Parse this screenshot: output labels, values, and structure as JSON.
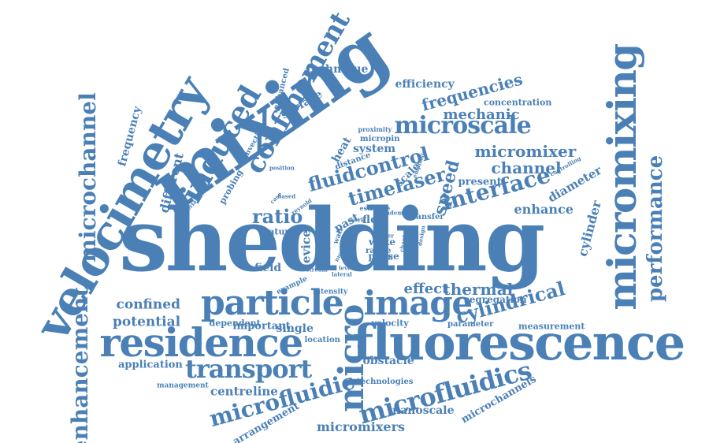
{
  "color": "#4a80b6",
  "words": [
    "shedding",
    "fluorescence",
    "mixing",
    "velocimetry",
    "micromixing",
    "residence",
    "particle",
    "image",
    "micro",
    "microscale",
    "confinement",
    "induced",
    "microchannel",
    "transport",
    "microfluidics",
    "microfluidic",
    "enhancement",
    "performance",
    "interface",
    "cylindrical",
    "fluidcontrol",
    "timelaser",
    "frequencies",
    "speed",
    "micromixer",
    "channel",
    "ratio",
    "thermal",
    "effect",
    "enhance",
    "mechanic",
    "efficiency",
    "confined",
    "potential",
    "application",
    "centreline",
    "micromixers",
    "microchannels",
    "nanoscale",
    "arrangement",
    "obstacle",
    "technique",
    "surface",
    "frequency",
    "system",
    "cylinder",
    "diameter",
    "present",
    "different",
    "enhanced",
    "convection",
    "probing",
    "heat",
    "scale",
    "past",
    "flow",
    "device",
    "wake",
    "range",
    "phase",
    "single",
    "important",
    "dependent",
    "location",
    "velocity",
    "measurement",
    "segregation",
    "parameter",
    "technologies",
    "management",
    "intensity",
    "field",
    "feature",
    "concentration",
    "micropin",
    "proximity",
    "distance",
    "position",
    "material",
    "controlling",
    "emphasis",
    "reynold",
    "estimate",
    "transfer",
    "tandem",
    "stream",
    "level",
    "lateral",
    "example",
    "wall",
    "work",
    "order",
    "chapter",
    "design",
    "useful",
    "result",
    "based",
    "case",
    "physical",
    "number"
  ]
}
